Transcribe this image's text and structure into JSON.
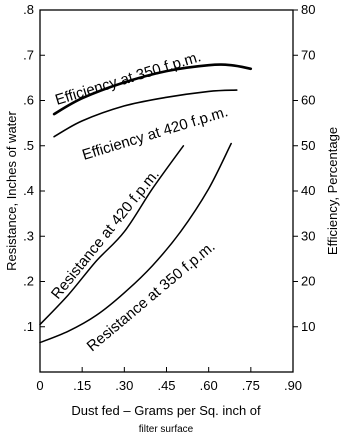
{
  "chart_data": {
    "type": "line",
    "xlabel_line1": "Dust fed – Grams per Sq. inch of",
    "xlabel_line2": "filter surface",
    "ylabel_left": "Resistance, Inches of water",
    "ylabel_right": "Efficiency, Percentage",
    "x_ticks": [
      0,
      0.15,
      0.3,
      0.45,
      0.6,
      0.75,
      0.9
    ],
    "x_tick_labels": [
      "0",
      ".15",
      ".30",
      ".45",
      ".60",
      ".75",
      ".90"
    ],
    "xlim": [
      0,
      0.9
    ],
    "y_left_ticks": [
      0.1,
      0.2,
      0.3,
      0.4,
      0.5,
      0.6,
      0.7,
      0.8
    ],
    "y_left_tick_labels": [
      ".1",
      ".2",
      ".3",
      ".4",
      ".5",
      ".6",
      ".7",
      ".8"
    ],
    "ylim_left": [
      0,
      0.8
    ],
    "y_right_ticks": [
      10,
      20,
      30,
      40,
      50,
      60,
      70,
      80
    ],
    "y_right_tick_labels": [
      "10",
      "20",
      "30",
      "40",
      "50",
      "60",
      "70",
      "80"
    ],
    "ylim_right": [
      0,
      80
    ],
    "grid": false,
    "series": [
      {
        "name": "Efficiency at 350 f.p.m.",
        "axis": "right",
        "x": [
          0.05,
          0.15,
          0.3,
          0.45,
          0.6,
          0.68,
          0.75
        ],
        "y": [
          57,
          60.5,
          64,
          66.5,
          67.8,
          67.8,
          67
        ]
      },
      {
        "name": "Efficiency at 420 f.p.m.",
        "axis": "right",
        "x": [
          0.05,
          0.15,
          0.3,
          0.45,
          0.6,
          0.7
        ],
        "y": [
          52,
          55.5,
          58.8,
          60.7,
          62,
          62.3
        ]
      },
      {
        "name": "Resistance at 420 f.p.m.",
        "axis": "left",
        "x": [
          0,
          0.1,
          0.2,
          0.3,
          0.4,
          0.51
        ],
        "y": [
          0.105,
          0.17,
          0.245,
          0.31,
          0.405,
          0.5
        ]
      },
      {
        "name": "Resistance at 350 f.p.m.",
        "axis": "left",
        "x": [
          0,
          0.1,
          0.2,
          0.3,
          0.4,
          0.5,
          0.6,
          0.68
        ],
        "y": [
          0.065,
          0.09,
          0.125,
          0.175,
          0.235,
          0.31,
          0.405,
          0.505
        ]
      }
    ]
  }
}
